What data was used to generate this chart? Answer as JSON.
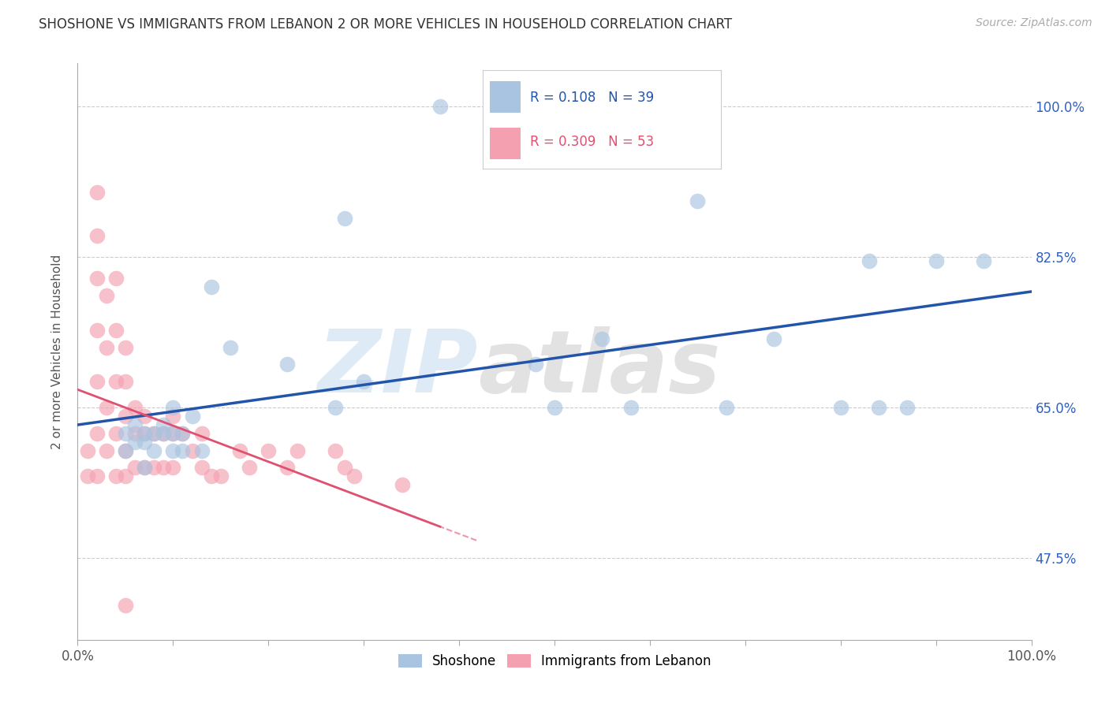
{
  "title": "SHOSHONE VS IMMIGRANTS FROM LEBANON 2 OR MORE VEHICLES IN HOUSEHOLD CORRELATION CHART",
  "source_text": "Source: ZipAtlas.com",
  "ylabel": "2 or more Vehicles in Household",
  "ytick_vals": [
    0.475,
    0.65,
    0.825,
    1.0
  ],
  "ytick_labels": [
    "47.5%",
    "65.0%",
    "82.5%",
    "100.0%"
  ],
  "legend_shoshone": "Shoshone",
  "legend_lebanon": "Immigrants from Lebanon",
  "R_shoshone": 0.108,
  "N_shoshone": 39,
  "R_lebanon": 0.309,
  "N_lebanon": 53,
  "shoshone_color": "#a8c4e0",
  "lebanon_color": "#f4a0b0",
  "shoshone_line_color": "#2255aa",
  "lebanon_line_color": "#e05070",
  "xlim": [
    0.0,
    1.0
  ],
  "ylim": [
    0.38,
    1.05
  ],
  "shoshone_x": [
    0.05,
    0.05,
    0.06,
    0.06,
    0.07,
    0.07,
    0.07,
    0.08,
    0.08,
    0.08,
    0.09,
    0.09,
    0.1,
    0.1,
    0.1,
    0.11,
    0.11,
    0.12,
    0.13,
    0.14,
    0.16,
    0.22,
    0.27,
    0.28,
    0.3,
    0.38,
    0.48,
    0.5,
    0.55,
    0.58,
    0.65,
    0.68,
    0.73,
    0.8,
    0.83,
    0.84,
    0.87,
    0.9,
    0.95
  ],
  "shoshone_y": [
    0.62,
    0.6,
    0.61,
    0.63,
    0.62,
    0.61,
    0.58,
    0.62,
    0.6,
    0.65,
    0.62,
    0.63,
    0.62,
    0.6,
    0.65,
    0.62,
    0.6,
    0.64,
    0.6,
    0.79,
    0.72,
    0.7,
    0.65,
    0.87,
    0.68,
    1.0,
    0.7,
    0.65,
    0.73,
    0.65,
    0.89,
    0.65,
    0.73,
    0.65,
    0.82,
    0.65,
    0.65,
    0.82,
    0.82
  ],
  "lebanon_x": [
    0.01,
    0.01,
    0.02,
    0.02,
    0.02,
    0.02,
    0.02,
    0.02,
    0.02,
    0.03,
    0.03,
    0.03,
    0.03,
    0.04,
    0.04,
    0.04,
    0.04,
    0.04,
    0.05,
    0.05,
    0.05,
    0.05,
    0.05,
    0.05,
    0.06,
    0.06,
    0.06,
    0.07,
    0.07,
    0.07,
    0.08,
    0.08,
    0.09,
    0.09,
    0.1,
    0.1,
    0.1,
    0.11,
    0.12,
    0.13,
    0.13,
    0.14,
    0.15,
    0.17,
    0.18,
    0.2,
    0.22,
    0.23,
    0.27,
    0.28,
    0.29,
    0.34,
    0.35
  ],
  "lebanon_y": [
    0.6,
    0.57,
    0.9,
    0.85,
    0.8,
    0.74,
    0.68,
    0.62,
    0.57,
    0.78,
    0.72,
    0.65,
    0.6,
    0.8,
    0.74,
    0.68,
    0.62,
    0.57,
    0.72,
    0.68,
    0.64,
    0.6,
    0.57,
    0.42,
    0.65,
    0.62,
    0.58,
    0.64,
    0.62,
    0.58,
    0.62,
    0.58,
    0.62,
    0.58,
    0.64,
    0.62,
    0.58,
    0.62,
    0.6,
    0.62,
    0.58,
    0.57,
    0.57,
    0.6,
    0.58,
    0.6,
    0.58,
    0.6,
    0.6,
    0.58,
    0.57,
    0.56,
    0.57
  ]
}
